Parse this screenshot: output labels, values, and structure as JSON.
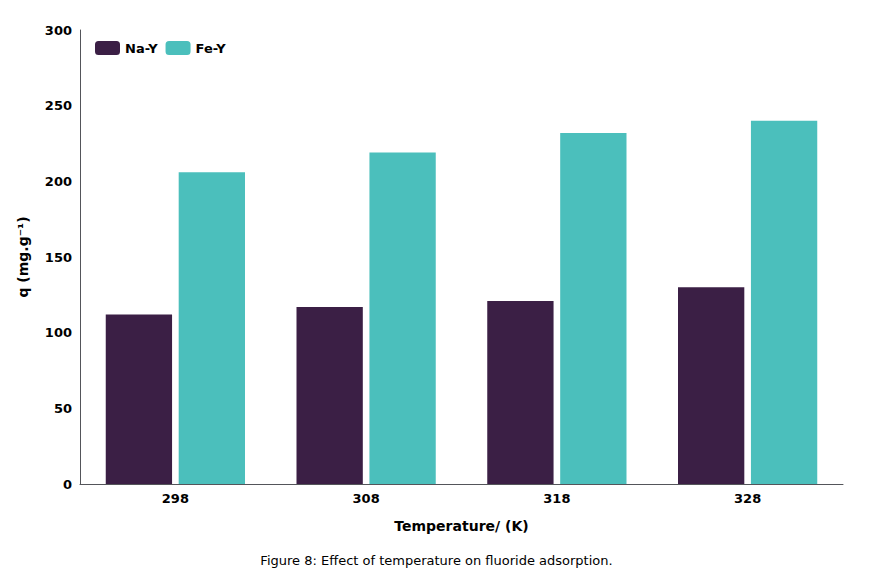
{
  "chart_data": {
    "type": "bar",
    "title": "Figure 8: Effect of temperature on fluoride adsorption.",
    "xlabel": "Temperature/ (K)",
    "ylabel": "q (mg.g⁻¹)",
    "categories": [
      "298",
      "308",
      "318",
      "328"
    ],
    "series": [
      {
        "name": "Na-Y",
        "color": "#3B1F45",
        "values": [
          112,
          117,
          121,
          130
        ]
      },
      {
        "name": "Fe-Y",
        "color": "#4BBFBC",
        "values": [
          206,
          219,
          232,
          240
        ]
      }
    ],
    "ylim": [
      0,
      300
    ],
    "yticks": [
      0,
      50,
      100,
      150,
      200,
      250,
      300
    ],
    "grid": false,
    "legend": "upper left"
  }
}
